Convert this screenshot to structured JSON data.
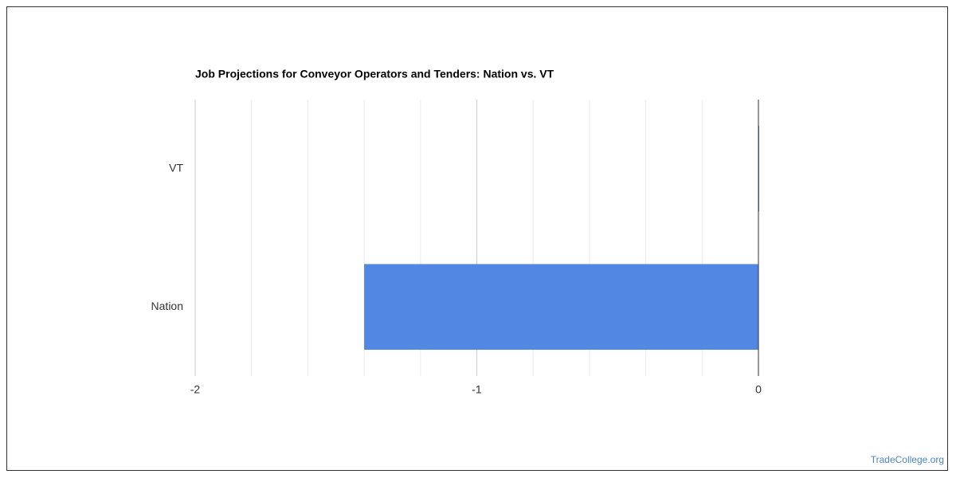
{
  "chart_data": {
    "type": "bar",
    "orientation": "horizontal",
    "title": "Job Projections for Conveyor Operators and Tenders: Nation vs. VT",
    "categories": [
      "VT",
      "Nation"
    ],
    "values": [
      0,
      -1.4
    ],
    "color": "#5287e3",
    "xlim": [
      -2,
      0
    ],
    "xticks": [
      -2,
      -1,
      0
    ],
    "minor_gridlines": [
      -1.8,
      -1.6,
      -1.4,
      -1.2,
      -0.8,
      -0.6,
      -0.4,
      -0.2
    ],
    "grid": true
  },
  "watermark": "TradeCollege.org"
}
